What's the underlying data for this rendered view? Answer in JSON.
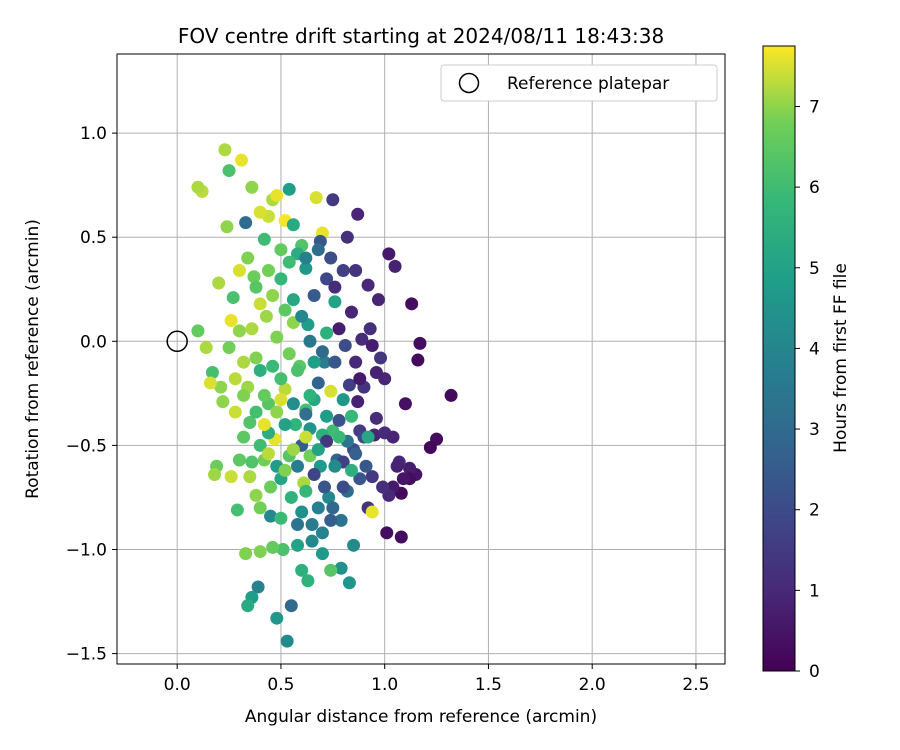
{
  "chart_data": {
    "type": "scatter",
    "title": "FOV centre drift starting at 2024/08/11 18:43:38",
    "xlabel": "Angular distance from reference (arcmin)",
    "ylabel": "Rotation from reference (arcmin)",
    "xlim": [
      -0.29,
      2.64
    ],
    "ylim": [
      -1.55,
      1.38
    ],
    "xticks": [
      "0.0",
      "0.5",
      "1.0",
      "1.5",
      "2.0",
      "2.5"
    ],
    "yticks": [
      "−1.5",
      "−1.0",
      "−0.5",
      "0.0",
      "0.5",
      "1.0"
    ],
    "grid": true,
    "legend": {
      "placement": "top-right",
      "entries": [
        "Reference platepar"
      ]
    },
    "reference_point": {
      "x": 0.0,
      "y": 0.0,
      "marker": "open-circle"
    },
    "colorbar": {
      "label": "Hours from first FF file",
      "min": 0,
      "max": 7.75,
      "ticks": [
        "0",
        "1",
        "2",
        "3",
        "4",
        "5",
        "6",
        "7"
      ],
      "colormap": "viridis"
    },
    "points": [
      [
        1.32,
        -0.26,
        0.2
      ],
      [
        1.25,
        -0.47,
        0.3
      ],
      [
        1.22,
        -0.51,
        0.2
      ],
      [
        1.17,
        -0.01,
        0.3
      ],
      [
        1.16,
        -0.09,
        0.2
      ],
      [
        1.15,
        -0.64,
        0.5
      ],
      [
        1.13,
        0.18,
        0.3
      ],
      [
        1.12,
        -0.61,
        0.7
      ],
      [
        1.12,
        -0.66,
        0.3
      ],
      [
        1.1,
        -0.3,
        0.4
      ],
      [
        1.09,
        -0.66,
        0.5
      ],
      [
        1.08,
        -0.73,
        0.2
      ],
      [
        1.08,
        -0.94,
        0.3
      ],
      [
        1.07,
        -0.58,
        1.0
      ],
      [
        1.05,
        0.36,
        0.8
      ],
      [
        1.04,
        -0.7,
        0.6
      ],
      [
        1.02,
        0.42,
        0.6
      ],
      [
        1.02,
        -0.74,
        1.0
      ],
      [
        1.01,
        -0.92,
        0.3
      ],
      [
        1.0,
        -0.18,
        0.9
      ],
      [
        0.99,
        -0.7,
        1.2
      ],
      [
        0.97,
        0.2,
        0.9
      ],
      [
        0.96,
        -0.37,
        1.1
      ],
      [
        0.96,
        -0.15,
        0.8
      ],
      [
        0.95,
        -0.45,
        0.9
      ],
      [
        0.94,
        -0.65,
        1.5
      ],
      [
        0.93,
        0.06,
        1.2
      ],
      [
        0.92,
        0.27,
        1.0
      ],
      [
        0.92,
        -0.8,
        1.3
      ],
      [
        0.91,
        -0.6,
        2.4
      ],
      [
        0.9,
        -0.22,
        1.3
      ],
      [
        0.89,
        0.01,
        1.1
      ],
      [
        0.88,
        -0.43,
        1.5
      ],
      [
        0.87,
        0.61,
        0.9
      ],
      [
        0.86,
        0.34,
        1.3
      ],
      [
        0.85,
        -0.52,
        2.0
      ],
      [
        0.85,
        -0.98,
        4.2
      ],
      [
        0.84,
        -0.36,
        5.8
      ],
      [
        0.83,
        -1.16,
        4.5
      ],
      [
        0.82,
        -0.72,
        3.1
      ],
      [
        0.81,
        -0.02,
        2.1
      ],
      [
        0.8,
        -0.28,
        4.6
      ],
      [
        0.79,
        -0.86,
        3.3
      ],
      [
        0.79,
        -1.09,
        4.4
      ],
      [
        0.78,
        0.06,
        0.7
      ],
      [
        0.77,
        -0.57,
        2.8
      ],
      [
        0.76,
        0.19,
        5.0
      ],
      [
        0.75,
        0.68,
        1.5
      ],
      [
        0.75,
        -0.43,
        6.0
      ],
      [
        0.74,
        -0.24,
        7.5
      ],
      [
        0.74,
        -1.1,
        6.4
      ],
      [
        0.73,
        -0.75,
        4.1
      ],
      [
        0.72,
        0.04,
        5.5
      ],
      [
        0.71,
        -0.1,
        3.7
      ],
      [
        0.7,
        0.52,
        7.6
      ],
      [
        0.7,
        -0.45,
        5.5
      ],
      [
        0.69,
        -0.6,
        4.7
      ],
      [
        0.69,
        0.48,
        2.4
      ],
      [
        0.68,
        -0.8,
        3.8
      ],
      [
        0.67,
        0.69,
        7.5
      ],
      [
        0.66,
        -0.28,
        5.2
      ],
      [
        0.65,
        -0.96,
        4.1
      ],
      [
        0.64,
        -0.55,
        6.8
      ],
      [
        0.63,
        -1.15,
        5.6
      ],
      [
        0.63,
        0.08,
        4.8
      ],
      [
        0.62,
        -0.33,
        6.1
      ],
      [
        0.61,
        -0.68,
        7.2
      ],
      [
        0.6,
        0.46,
        6.3
      ],
      [
        0.59,
        -0.12,
        6.5
      ],
      [
        0.58,
        -0.88,
        3.4
      ],
      [
        0.57,
        -0.4,
        5.7
      ],
      [
        0.56,
        0.09,
        7.0
      ],
      [
        0.55,
        -1.27,
        3.0
      ],
      [
        0.54,
        -0.55,
        6.4
      ],
      [
        0.54,
        0.73,
        4.9
      ],
      [
        0.53,
        -1.44,
        4.2
      ],
      [
        0.52,
        -0.23,
        7.3
      ],
      [
        0.51,
        -1.0,
        6.2
      ],
      [
        0.5,
        0.3,
        5.8
      ],
      [
        0.5,
        -0.66,
        5.1
      ],
      [
        0.48,
        -1.33,
        4.6
      ],
      [
        0.48,
        0.02,
        6.9
      ],
      [
        0.47,
        -0.47,
        7.6
      ],
      [
        0.46,
        -0.99,
        6.6
      ],
      [
        0.46,
        0.68,
        7.2
      ],
      [
        0.45,
        -0.84,
        4.1
      ],
      [
        0.44,
        -0.3,
        6.4
      ],
      [
        0.43,
        0.12,
        7.1
      ],
      [
        0.42,
        -0.57,
        6.8
      ],
      [
        0.42,
        0.49,
        6.0
      ],
      [
        0.4,
        -0.14,
        5.5
      ],
      [
        0.4,
        -1.01,
        6.9
      ],
      [
        0.39,
        -1.18,
        3.9
      ],
      [
        0.38,
        -0.74,
        7.0
      ],
      [
        0.37,
        0.31,
        6.7
      ],
      [
        0.36,
        -1.23,
        4.8
      ],
      [
        0.35,
        -0.39,
        6.3
      ],
      [
        0.34,
        -1.27,
        5.3
      ],
      [
        0.33,
        0.57,
        3.1
      ],
      [
        0.33,
        -1.02,
        6.9
      ],
      [
        0.32,
        -0.1,
        7.2
      ],
      [
        0.31,
        0.87,
        7.6
      ],
      [
        0.3,
        -0.57,
        6.5
      ],
      [
        0.29,
        -0.81,
        6.1
      ],
      [
        0.28,
        -0.34,
        7.4
      ],
      [
        0.27,
        0.21,
        6.2
      ],
      [
        0.26,
        -0.65,
        7.4
      ],
      [
        0.25,
        0.82,
        6.2
      ],
      [
        0.25,
        -0.03,
        6.8
      ],
      [
        0.24,
        0.55,
        7.0
      ],
      [
        0.23,
        0.92,
        7.2
      ],
      [
        0.22,
        -0.29,
        7.0
      ],
      [
        0.21,
        -0.22,
        7.0
      ],
      [
        0.2,
        0.28,
        7.2
      ],
      [
        0.19,
        -0.6,
        6.7
      ],
      [
        0.18,
        -0.64,
        7.1
      ],
      [
        0.17,
        -0.15,
        6.1
      ],
      [
        0.16,
        -0.2,
        7.5
      ],
      [
        0.14,
        -0.03,
        7.2
      ],
      [
        0.12,
        0.72,
        7.3
      ],
      [
        0.1,
        0.74,
        7.2
      ],
      [
        0.1,
        0.05,
        6.6
      ],
      [
        0.6,
        -0.5,
        2.6
      ],
      [
        0.62,
        -0.35,
        3.2
      ],
      [
        0.66,
        -0.64,
        1.8
      ],
      [
        0.72,
        -0.48,
        1.4
      ],
      [
        0.78,
        -0.38,
        2.2
      ],
      [
        0.8,
        -0.58,
        1.7
      ],
      [
        0.83,
        -0.21,
        1.6
      ],
      [
        0.87,
        -0.29,
        0.8
      ],
      [
        0.9,
        -0.46,
        1.9
      ],
      [
        0.74,
        -0.86,
        2.6
      ],
      [
        0.68,
        -0.2,
        2.8
      ],
      [
        0.71,
        -0.7,
        2.3
      ],
      [
        0.64,
        -0.42,
        4.5
      ],
      [
        0.58,
        -0.6,
        3.7
      ],
      [
        0.56,
        -0.3,
        4.3
      ],
      [
        0.52,
        -0.4,
        5.0
      ],
      [
        0.5,
        -0.18,
        6.1
      ],
      [
        0.48,
        -0.6,
        4.8
      ],
      [
        0.46,
        -0.12,
        5.9
      ],
      [
        0.44,
        -0.44,
        5.4
      ],
      [
        0.42,
        -0.26,
        6.6
      ],
      [
        0.4,
        -0.5,
        6.0
      ],
      [
        0.38,
        -0.08,
        6.9
      ],
      [
        0.36,
        -0.58,
        6.3
      ],
      [
        0.34,
        -0.22,
        7.1
      ],
      [
        0.32,
        -0.46,
        6.5
      ],
      [
        0.3,
        0.05,
        7.0
      ],
      [
        0.52,
        0.15,
        6.5
      ],
      [
        0.56,
        0.2,
        5.2
      ],
      [
        0.6,
        0.12,
        4.0
      ],
      [
        0.64,
        0.0,
        3.5
      ],
      [
        0.66,
        0.22,
        2.5
      ],
      [
        0.7,
        -0.05,
        3.0
      ],
      [
        0.72,
        0.3,
        1.9
      ],
      [
        0.76,
        -0.1,
        2.4
      ],
      [
        0.62,
        0.35,
        4.6
      ],
      [
        0.58,
        0.42,
        5.4
      ],
      [
        0.54,
        0.38,
        6.0
      ],
      [
        0.5,
        0.44,
        6.6
      ],
      [
        0.46,
        0.22,
        7.0
      ],
      [
        0.44,
        0.34,
        6.8
      ],
      [
        0.4,
        0.18,
        7.4
      ],
      [
        0.36,
        0.06,
        7.2
      ],
      [
        0.34,
        0.4,
        6.9
      ],
      [
        0.38,
        0.26,
        6.4
      ],
      [
        0.55,
        -0.75,
        5.6
      ],
      [
        0.6,
        -0.82,
        4.4
      ],
      [
        0.65,
        -0.88,
        3.6
      ],
      [
        0.7,
        -0.92,
        3.9
      ],
      [
        0.75,
        -0.8,
        2.9
      ],
      [
        0.8,
        -0.7,
        2.0
      ],
      [
        0.5,
        -0.85,
        5.9
      ],
      [
        0.45,
        -0.7,
        6.7
      ],
      [
        0.4,
        -0.8,
        6.8
      ],
      [
        0.35,
        -0.65,
        7.2
      ],
      [
        0.66,
        -0.1,
        4.9
      ],
      [
        0.64,
        -0.26,
        5.6
      ],
      [
        0.58,
        -0.14,
        6.2
      ],
      [
        0.54,
        -0.06,
        6.8
      ],
      [
        0.48,
        -0.34,
        7.0
      ],
      [
        0.44,
        -0.54,
        7.3
      ],
      [
        0.52,
        -0.62,
        6.9
      ],
      [
        0.62,
        -0.72,
        5.8
      ],
      [
        0.68,
        -0.52,
        5.0
      ],
      [
        0.76,
        -0.6,
        4.2
      ],
      [
        0.82,
        -0.48,
        3.4
      ],
      [
        0.86,
        -0.54,
        2.7
      ],
      [
        0.88,
        -0.66,
        2.3
      ],
      [
        0.72,
        -0.36,
        4.8
      ],
      [
        0.78,
        -0.46,
        5.9
      ],
      [
        0.84,
        -0.62,
        5.5
      ],
      [
        0.92,
        -0.46,
        5.2
      ],
      [
        0.94,
        -0.82,
        7.6
      ],
      [
        0.58,
        -0.98,
        5.0
      ],
      [
        0.6,
        -1.1,
        5.5
      ],
      [
        0.7,
        -1.02,
        4.7
      ],
      [
        0.62,
        -0.46,
        7.4
      ],
      [
        0.56,
        -0.52,
        7.1
      ],
      [
        0.5,
        -0.28,
        7.5
      ],
      [
        0.42,
        -0.4,
        7.6
      ],
      [
        0.38,
        -0.34,
        6.1
      ],
      [
        0.32,
        -0.26,
        6.9
      ],
      [
        0.28,
        -0.18,
        7.3
      ],
      [
        0.3,
        0.34,
        7.5
      ],
      [
        0.26,
        0.1,
        7.6
      ],
      [
        0.52,
        0.58,
        7.7
      ],
      [
        0.48,
        0.7,
        7.6
      ],
      [
        0.44,
        0.6,
        7.4
      ],
      [
        0.4,
        0.62,
        7.5
      ],
      [
        0.36,
        0.74,
        7.0
      ],
      [
        0.56,
        0.56,
        5.3
      ],
      [
        0.62,
        0.4,
        3.8
      ],
      [
        0.68,
        0.44,
        3.1
      ],
      [
        0.74,
        0.4,
        2.1
      ],
      [
        0.8,
        0.34,
        1.7
      ],
      [
        0.82,
        0.5,
        1.2
      ],
      [
        0.76,
        0.26,
        1.1
      ],
      [
        0.84,
        0.14,
        0.9
      ],
      [
        0.86,
        -0.1,
        1.0
      ],
      [
        0.88,
        -0.18,
        0.6
      ],
      [
        0.94,
        -0.02,
        0.7
      ],
      [
        0.98,
        -0.08,
        1.4
      ],
      [
        1.0,
        -0.44,
        1.1
      ],
      [
        1.04,
        -0.46,
        0.9
      ],
      [
        1.06,
        -0.6,
        0.8
      ]
    ]
  }
}
